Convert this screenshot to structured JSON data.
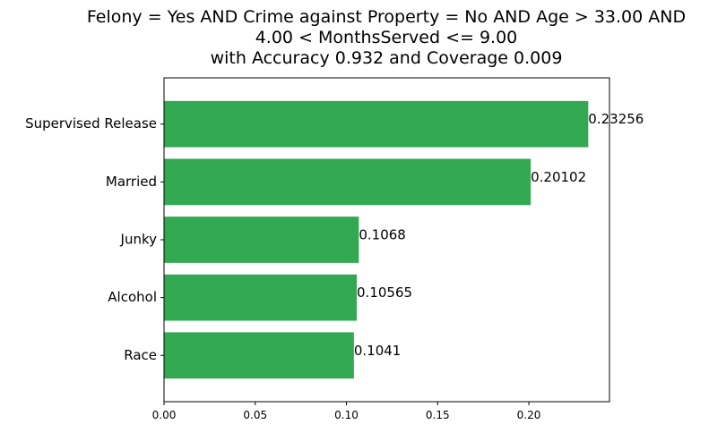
{
  "chart_data": {
    "type": "bar",
    "orientation": "horizontal",
    "title_lines": [
      "Felony = Yes AND Crime against Property = No AND Age > 33.00 AND",
      "4.00 < MonthsServed <= 9.00",
      "with Accuracy 0.932 and Coverage 0.009"
    ],
    "categories": [
      "Supervised Release",
      "Married",
      "Junky",
      "Alcohol",
      "Race"
    ],
    "values": [
      0.23256,
      0.20102,
      0.1068,
      0.10565,
      0.1041
    ],
    "value_labels": [
      "0.23256",
      "0.20102",
      "0.1068",
      "0.10565",
      "0.1041"
    ],
    "xticks": [
      "0.00",
      "0.05",
      "0.10",
      "0.15",
      "0.20"
    ],
    "xtick_values": [
      0,
      0.05,
      0.1,
      0.15,
      0.2
    ],
    "xlim": [
      0,
      0.2442
    ],
    "bar_color": "#33a853",
    "grid": false,
    "xlabel": "",
    "ylabel": ""
  }
}
